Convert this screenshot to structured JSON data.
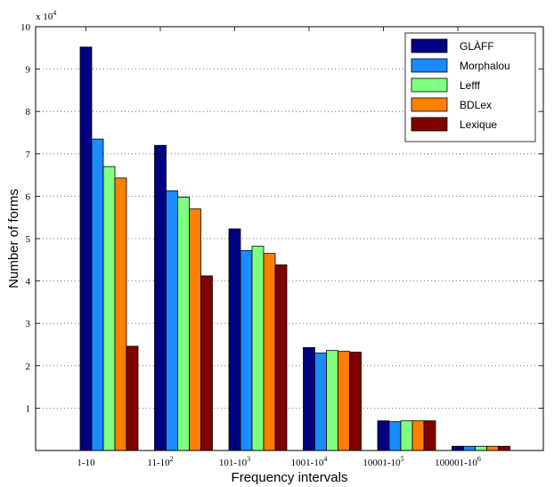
{
  "chart_data": {
    "type": "bar",
    "title": "",
    "xlabel": "Frequency intervals",
    "ylabel": "Number of forms",
    "y_multiplier": "x 10",
    "y_multiplier_exp": "4",
    "ylim": [
      0,
      10
    ],
    "y_ticks": [
      "1",
      "2",
      "3",
      "4",
      "5",
      "6",
      "7",
      "8",
      "9",
      "10"
    ],
    "categories": [
      {
        "base": "1-10",
        "sup": ""
      },
      {
        "base": "11-10",
        "sup": "2"
      },
      {
        "base": "101-10",
        "sup": "3"
      },
      {
        "base": "1001-10",
        "sup": "4"
      },
      {
        "base": "10001-10",
        "sup": "5"
      },
      {
        "base": "100001-10",
        "sup": "6"
      }
    ],
    "series": [
      {
        "name": "GLÀFF",
        "color": "#000080",
        "values": [
          9.52,
          7.2,
          5.23,
          2.43,
          0.7,
          0.1
        ]
      },
      {
        "name": "Morphalou",
        "color": "#1a8cff",
        "values": [
          7.35,
          6.13,
          4.72,
          2.3,
          0.68,
          0.1
        ]
      },
      {
        "name": "Lefff",
        "color": "#80ff80",
        "values": [
          6.7,
          5.98,
          4.82,
          2.36,
          0.7,
          0.1
        ]
      },
      {
        "name": "BDLex",
        "color": "#ff8000",
        "values": [
          6.43,
          5.7,
          4.65,
          2.34,
          0.7,
          0.1
        ]
      },
      {
        "name": "Lexique",
        "color": "#800000",
        "values": [
          2.46,
          4.12,
          4.38,
          2.32,
          0.7,
          0.1
        ]
      }
    ],
    "grid": true,
    "legend_position": "top-right"
  }
}
